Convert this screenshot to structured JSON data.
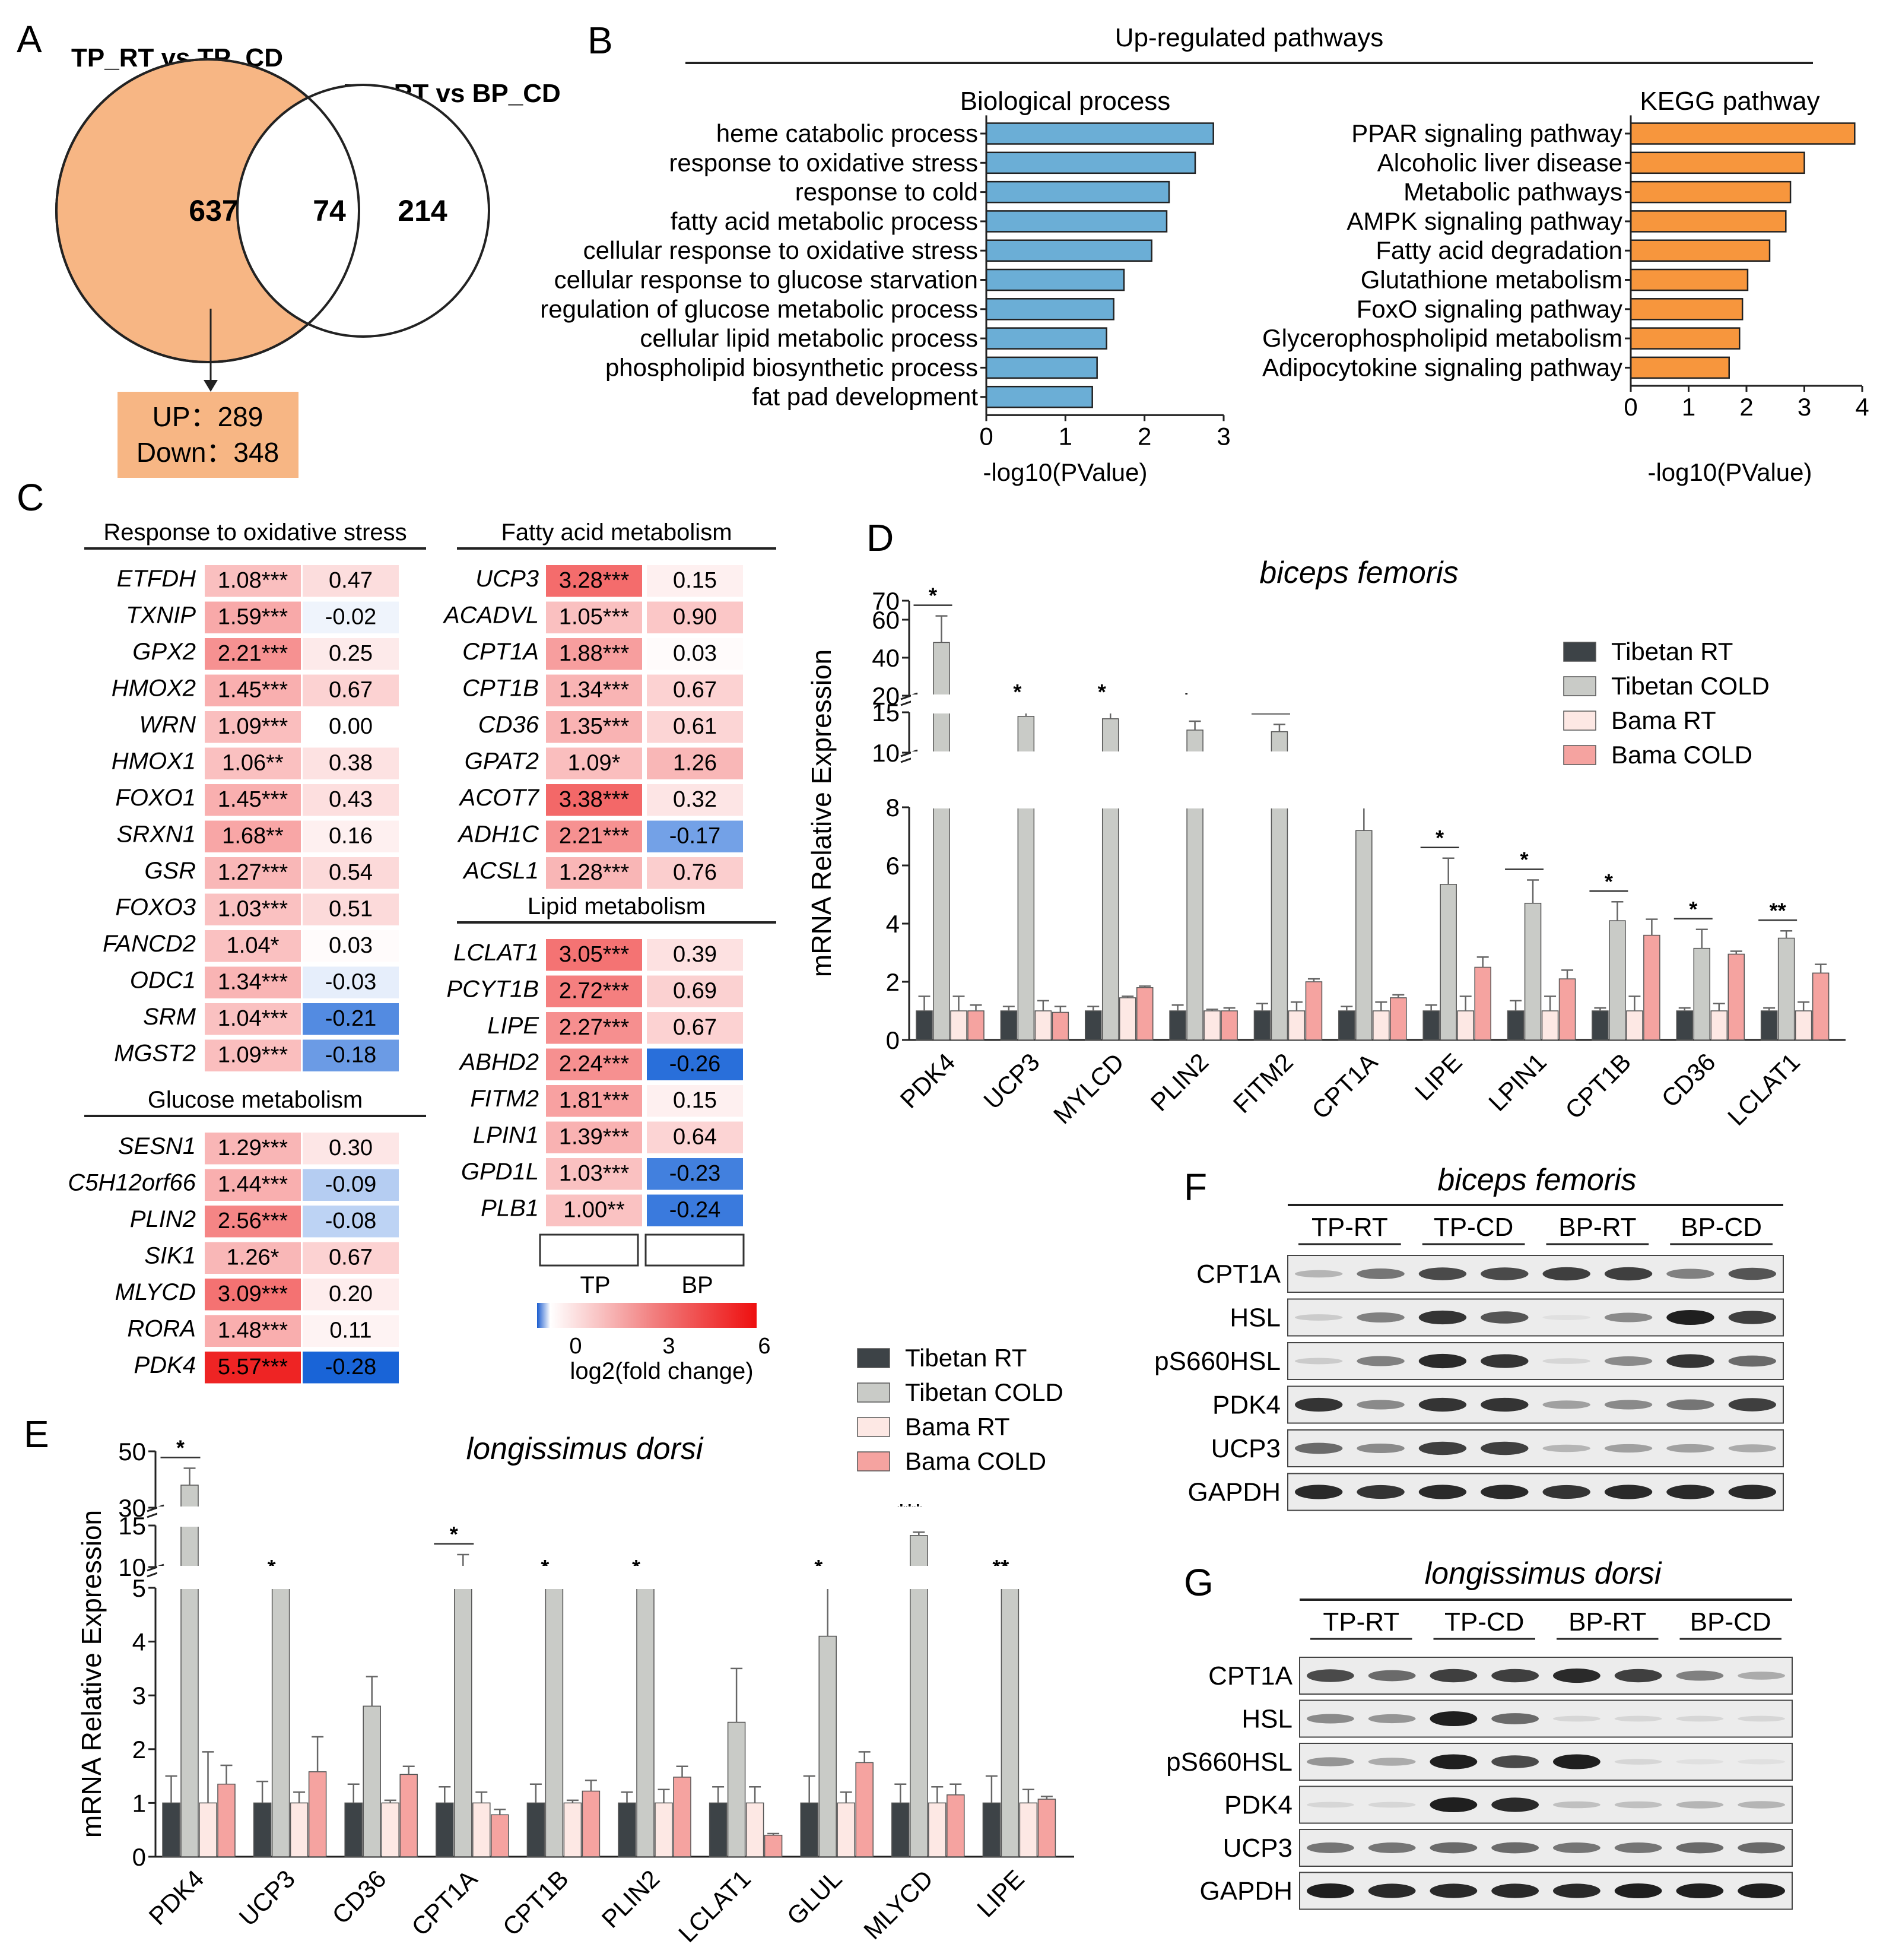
{
  "panels": {
    "A": {
      "letter": "A",
      "set1_title": "TP_RT vs TP_CD",
      "set2_title": "BP_RT vs BP_CD",
      "only_set1": "637",
      "overlap": "74",
      "only_set2": "214",
      "up_label": "UP：289",
      "down_label": "Down：348",
      "colors": {
        "set1": "#f7b684",
        "summary_box": "#f7b684"
      }
    },
    "B": {
      "letter": "B",
      "header": "Up-regulated pathways",
      "bp_title": "Biological process",
      "kegg_title": "KEGG pathway",
      "xlabel": "-log10(PValue)"
    },
    "C": {
      "letter": "C",
      "blocks": [
        {
          "title": "Response to oxidative stress",
          "rows": [
            {
              "gene": "ETFDH",
              "tp": "1.08***",
              "tpv": 1.08,
              "bp": "0.47",
              "bpv": 0.47
            },
            {
              "gene": "TXNIP",
              "tp": "1.59***",
              "tpv": 1.59,
              "bp": "-0.02",
              "bpv": -0.02
            },
            {
              "gene": "GPX2",
              "tp": "2.21***",
              "tpv": 2.21,
              "bp": "0.25",
              "bpv": 0.25
            },
            {
              "gene": "HMOX2",
              "tp": "1.45***",
              "tpv": 1.45,
              "bp": "0.67",
              "bpv": 0.67
            },
            {
              "gene": "WRN",
              "tp": "1.09***",
              "tpv": 1.09,
              "bp": "0.00",
              "bpv": 0.0
            },
            {
              "gene": "HMOX1",
              "tp": "1.06**",
              "tpv": 1.06,
              "bp": "0.38",
              "bpv": 0.38
            },
            {
              "gene": "FOXO1",
              "tp": "1.45***",
              "tpv": 1.45,
              "bp": "0.43",
              "bpv": 0.43
            },
            {
              "gene": "SRXN1",
              "tp": "1.68**",
              "tpv": 1.68,
              "bp": "0.16",
              "bpv": 0.16
            },
            {
              "gene": "GSR",
              "tp": "1.27***",
              "tpv": 1.27,
              "bp": "0.54",
              "bpv": 0.54
            },
            {
              "gene": "FOXO3",
              "tp": "1.03***",
              "tpv": 1.03,
              "bp": "0.51",
              "bpv": 0.51
            },
            {
              "gene": "FANCD2",
              "tp": "1.04*",
              "tpv": 1.04,
              "bp": "0.03",
              "bpv": 0.03
            },
            {
              "gene": "ODC1",
              "tp": "1.34***",
              "tpv": 1.34,
              "bp": "-0.03",
              "bpv": -0.03
            },
            {
              "gene": "SRM",
              "tp": "1.04***",
              "tpv": 1.04,
              "bp": "-0.21",
              "bpv": -0.21
            },
            {
              "gene": "MGST2",
              "tp": "1.09***",
              "tpv": 1.09,
              "bp": "-0.18",
              "bpv": -0.18
            }
          ]
        },
        {
          "title": "Glucose metabolism",
          "rows": [
            {
              "gene": "SESN1",
              "tp": "1.29***",
              "tpv": 1.29,
              "bp": "0.30",
              "bpv": 0.3
            },
            {
              "gene": "C5H12orf66",
              "tp": "1.44***",
              "tpv": 1.44,
              "bp": "-0.09",
              "bpv": -0.09
            },
            {
              "gene": "PLIN2",
              "tp": "2.56***",
              "tpv": 2.56,
              "bp": "-0.08",
              "bpv": -0.08
            },
            {
              "gene": "SIK1",
              "tp": "1.26*",
              "tpv": 1.26,
              "bp": "0.67",
              "bpv": 0.67
            },
            {
              "gene": "MLYCD",
              "tp": "3.09***",
              "tpv": 3.09,
              "bp": "0.20",
              "bpv": 0.2
            },
            {
              "gene": "RORA",
              "tp": "1.48***",
              "tpv": 1.48,
              "bp": "0.11",
              "bpv": 0.11
            },
            {
              "gene": "PDK4",
              "tp": "5.57***",
              "tpv": 5.57,
              "bp": "-0.28",
              "bpv": -0.28
            }
          ]
        },
        {
          "title": "Fatty acid metabolism",
          "rows": [
            {
              "gene": "UCP3",
              "tp": "3.28***",
              "tpv": 3.28,
              "bp": "0.15",
              "bpv": 0.15
            },
            {
              "gene": "ACADVL",
              "tp": "1.05***",
              "tpv": 1.05,
              "bp": "0.90",
              "bpv": 0.9
            },
            {
              "gene": "CPT1A",
              "tp": "1.88***",
              "tpv": 1.88,
              "bp": "0.03",
              "bpv": 0.03
            },
            {
              "gene": "CPT1B",
              "tp": "1.34***",
              "tpv": 1.34,
              "bp": "0.67",
              "bpv": 0.67
            },
            {
              "gene": "CD36",
              "tp": "1.35***",
              "tpv": 1.35,
              "bp": "0.61",
              "bpv": 0.61
            },
            {
              "gene": "GPAT2",
              "tp": "1.09*",
              "tpv": 1.09,
              "bp": "1.26",
              "bpv": 1.26
            },
            {
              "gene": "ACOT7",
              "tp": "3.38***",
              "tpv": 3.38,
              "bp": "0.32",
              "bpv": 0.32
            },
            {
              "gene": "ADH1C",
              "tp": "2.21***",
              "tpv": 2.21,
              "bp": "-0.17",
              "bpv": -0.17
            },
            {
              "gene": "ACSL1",
              "tp": "1.28***",
              "tpv": 1.28,
              "bp": "0.76",
              "bpv": 0.76
            }
          ]
        },
        {
          "title": "Lipid metabolism",
          "rows": [
            {
              "gene": "LCLAT1",
              "tp": "3.05***",
              "tpv": 3.05,
              "bp": "0.39",
              "bpv": 0.39
            },
            {
              "gene": "PCYT1B",
              "tp": "2.72***",
              "tpv": 2.72,
              "bp": "0.69",
              "bpv": 0.69
            },
            {
              "gene": "LIPE",
              "tp": "2.27***",
              "tpv": 2.27,
              "bp": "0.67",
              "bpv": 0.67
            },
            {
              "gene": "ABHD2",
              "tp": "2.24***",
              "tpv": 2.24,
              "bp": "-0.26",
              "bpv": -0.26
            },
            {
              "gene": "FITM2",
              "tp": "1.81***",
              "tpv": 1.81,
              "bp": "0.15",
              "bpv": 0.15
            },
            {
              "gene": "LPIN1",
              "tp": "1.39***",
              "tpv": 1.39,
              "bp": "0.64",
              "bpv": 0.64
            },
            {
              "gene": "GPD1L",
              "tp": "1.03***",
              "tpv": 1.03,
              "bp": "-0.23",
              "bpv": -0.23
            },
            {
              "gene": "PLB1",
              "tp": "1.00**",
              "tpv": 1.0,
              "bp": "-0.24",
              "bpv": -0.24
            }
          ]
        }
      ],
      "col_labels": [
        "TP",
        "BP"
      ],
      "colorbar_ticks": [
        "0",
        "3",
        "6"
      ],
      "colorbar_label": "log2(fold change)"
    },
    "D": {
      "letter": "D",
      "title": "biceps femoris",
      "ylabel": "mRNA Relative Expression"
    },
    "E": {
      "letter": "E",
      "title": "longissimus dorsi",
      "ylabel": "mRNA Relative Expression"
    },
    "F": {
      "letter": "F",
      "title": "biceps femoris",
      "groups": [
        "TP-RT",
        "TP-CD",
        "BP-RT",
        "BP-CD"
      ],
      "proteins": [
        "CPT1A",
        "HSL",
        "pS660HSL",
        "PDK4",
        "UCP3",
        "GAPDH"
      ]
    },
    "G": {
      "letter": "G",
      "title": "longissimus dorsi",
      "groups": [
        "TP-RT",
        "TP-CD",
        "BP-RT",
        "BP-CD"
      ],
      "proteins": [
        "CPT1A",
        "HSL",
        "pS660HSL",
        "PDK4",
        "UCP3",
        "GAPDH"
      ]
    }
  },
  "chart_data": [
    {
      "type": "bar",
      "panel": "B-left",
      "orientation": "horizontal",
      "title": "Biological process",
      "xlabel": "-log10(PValue)",
      "xlim": [
        0,
        3
      ],
      "xticks": [
        "0",
        "1",
        "2",
        "3"
      ],
      "categories": [
        "heme catabolic process",
        "response to oxidative stress",
        "response to cold",
        "fatty acid metabolic process",
        "cellular response to oxidative stress",
        "cellular response to glucose starvation",
        "regulation of glucose metabolic process",
        "cellular lipid metabolic process",
        "phospholipid biosynthetic process",
        "fat pad development"
      ],
      "values": [
        2.87,
        2.64,
        2.31,
        2.28,
        2.09,
        1.74,
        1.61,
        1.52,
        1.4,
        1.34
      ],
      "color": "#6baed6"
    },
    {
      "type": "bar",
      "panel": "B-right",
      "orientation": "horizontal",
      "title": "KEGG pathway",
      "xlabel": "-log10(PValue)",
      "xlim": [
        0,
        4
      ],
      "xticks": [
        "0",
        "1",
        "2",
        "3",
        "4"
      ],
      "categories": [
        "PPAR signaling pathway",
        "Alcoholic liver disease",
        "Metabolic pathways",
        "AMPK signaling pathway",
        "Fatty acid degradation",
        "Glutathione metabolism",
        "FoxO signaling pathway",
        "Glycerophospholipid metabolism",
        "Adipocytokine signaling pathway"
      ],
      "values": [
        3.87,
        3.0,
        2.76,
        2.68,
        2.4,
        2.02,
        1.93,
        1.88,
        1.7
      ],
      "color": "#f7963d"
    },
    {
      "type": "bar",
      "panel": "D",
      "title": "biceps femoris",
      "ylabel": "mRNA Relative Expression",
      "yaxis_segments": [
        {
          "range": [
            0,
            8
          ],
          "ticks": [
            "0",
            "2",
            "4",
            "6",
            "8"
          ]
        },
        {
          "range": [
            10,
            15
          ],
          "ticks": [
            "10",
            "15"
          ]
        },
        {
          "range": [
            20,
            70
          ],
          "ticks": [
            "20",
            "40",
            "60",
            "70"
          ]
        }
      ],
      "categories": [
        "PDK4",
        "UCP3",
        "MYLCD",
        "PLIN2",
        "FITM2",
        "CPT1A",
        "LIPE",
        "LPIN1",
        "CPT1B",
        "CD36",
        "LCLAT1"
      ],
      "series": [
        {
          "name": "Tibetan RT",
          "color": "#3d4347",
          "values": [
            1,
            1,
            1,
            1,
            1,
            1,
            1,
            1,
            1,
            1,
            1
          ],
          "errors": [
            0.5,
            0.15,
            0.15,
            0.2,
            0.25,
            0.15,
            0.2,
            0.35,
            0.1,
            0.1,
            0.1
          ]
        },
        {
          "name": "Tibetan COLD",
          "color": "#c9cbc7",
          "values": [
            48,
            14.5,
            14.2,
            12.8,
            12.6,
            7.2,
            5.35,
            4.7,
            4.1,
            3.15,
            3.5
          ],
          "errors": [
            14,
            1.2,
            1.8,
            1.1,
            0.9,
            1.6,
            0.9,
            0.8,
            0.65,
            0.65,
            0.25
          ]
        },
        {
          "name": "Bama RT",
          "color": "#fde8e4",
          "values": [
            1,
            1,
            1.45,
            1,
            1,
            1,
            1,
            1,
            1,
            1,
            1
          ],
          "errors": [
            0.5,
            0.35,
            0.05,
            0.05,
            0.3,
            0.3,
            0.5,
            0.5,
            0.5,
            0.25,
            0.3
          ]
        },
        {
          "name": "Bama COLD",
          "color": "#f5a3a0",
          "values": [
            1,
            0.95,
            1.8,
            1,
            2,
            1.45,
            2.5,
            2.1,
            3.6,
            2.95,
            2.3
          ],
          "errors": [
            0.2,
            0.2,
            0.05,
            0.1,
            0.1,
            0.1,
            0.35,
            0.3,
            0.55,
            0.1,
            0.3
          ]
        }
      ],
      "significance": [
        "*",
        "*",
        "*",
        "*",
        "*",
        "*",
        "*",
        "*",
        "*",
        "*",
        "**"
      ]
    },
    {
      "type": "bar",
      "panel": "E",
      "title": "longissimus dorsi",
      "ylabel": "mRNA Relative Expression",
      "yaxis_segments": [
        {
          "range": [
            0,
            5
          ],
          "ticks": [
            "0",
            "1",
            "2",
            "3",
            "4",
            "5"
          ]
        },
        {
          "range": [
            10,
            15
          ],
          "ticks": [
            "10",
            "15"
          ]
        },
        {
          "range": [
            30,
            50
          ],
          "ticks": [
            "30",
            "50"
          ]
        }
      ],
      "categories": [
        "PDK4",
        "UCP3",
        "CD36",
        "CPT1A",
        "CPT1B",
        "PLIN2",
        "LCLAT1",
        "GLUL",
        "MLYCD",
        "LIPE"
      ],
      "series": [
        {
          "name": "Tibetan RT",
          "color": "#3d4347",
          "values": [
            1,
            1,
            1,
            1,
            1,
            1,
            1,
            1,
            1,
            1
          ],
          "errors": [
            0.5,
            0.4,
            0.35,
            0.3,
            0.35,
            0.2,
            0.3,
            0.5,
            0.35,
            0.5
          ]
        },
        {
          "name": "Tibetan COLD",
          "color": "#c9cbc7",
          "values": [
            38,
            7.8,
            2.8,
            10,
            8,
            7.5,
            2.5,
            4.1,
            13.8,
            8
          ],
          "errors": [
            6,
            0.6,
            0.55,
            1.5,
            1.2,
            0.8,
            1,
            0.9,
            0.4,
            0.6
          ]
        },
        {
          "name": "Bama RT",
          "color": "#fde8e4",
          "values": [
            1,
            1,
            1,
            1,
            1,
            1,
            1,
            1,
            1,
            1
          ],
          "errors": [
            0.95,
            0.2,
            0.05,
            0.2,
            0.05,
            0.25,
            0.3,
            0.2,
            0.3,
            0.25
          ]
        },
        {
          "name": "Bama COLD",
          "color": "#f5a3a0",
          "values": [
            1.35,
            1.58,
            1.53,
            0.78,
            1.22,
            1.48,
            0.4,
            1.75,
            1.15,
            1.07
          ],
          "errors": [
            0.35,
            0.65,
            0.15,
            0.1,
            0.2,
            0.2,
            0.03,
            0.2,
            0.2,
            0.05
          ]
        }
      ],
      "significance": [
        "*",
        "*",
        "",
        "*",
        "*",
        "*",
        "",
        "*",
        "***",
        "**"
      ]
    }
  ]
}
